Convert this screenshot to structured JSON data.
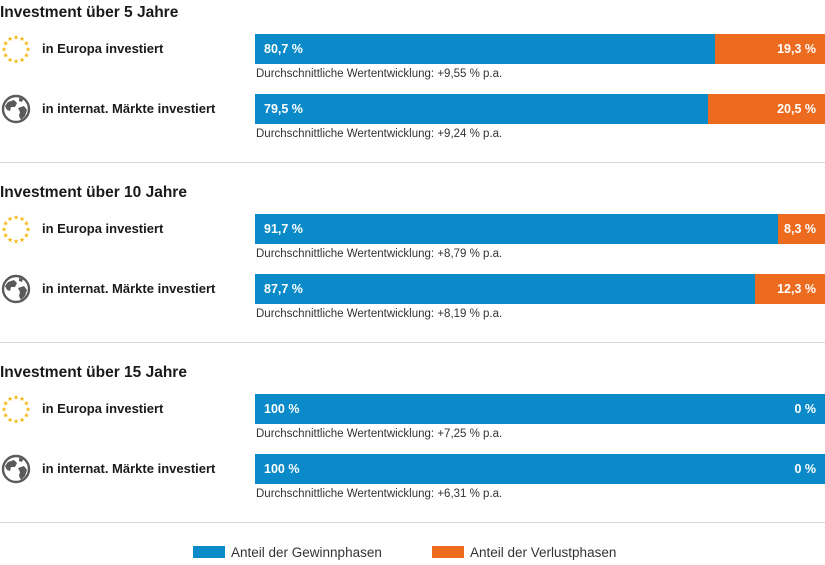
{
  "colors": {
    "gain": "#0a8ac8",
    "loss": "#ec6b1f",
    "europe_icon": "#f5b400",
    "globe_icon": "#5a5a5a"
  },
  "chart_data": {
    "type": "bar",
    "orientation": "horizontal",
    "stacked": true,
    "xlim": [
      0,
      100
    ],
    "avg_prefix": "Durchschnittliche Wertentwicklung:",
    "legend": [
      {
        "label": "Anteil der Gewinnphasen",
        "color": "#0a8ac8"
      },
      {
        "label": "Anteil der Verlustphasen",
        "color": "#ec6b1f"
      }
    ],
    "groups": [
      {
        "title": "Investment über 5 Jahre",
        "rows": [
          {
            "label": "in Europa investiert",
            "icon": "europe-stars-icon",
            "gain": 80.7,
            "loss": 19.3,
            "gain_text": "80,7 %",
            "loss_text": "19,3 %",
            "avg_text": "+9,55 % p.a."
          },
          {
            "label": "in internat. Märkte investiert",
            "icon": "globe-icon",
            "gain": 79.5,
            "loss": 20.5,
            "gain_text": "79,5 %",
            "loss_text": "20,5 %",
            "avg_text": "+9,24 % p.a."
          }
        ]
      },
      {
        "title": "Investment über 10 Jahre",
        "rows": [
          {
            "label": "in Europa investiert",
            "icon": "europe-stars-icon",
            "gain": 91.7,
            "loss": 8.3,
            "gain_text": "91,7 %",
            "loss_text": "8,3 %",
            "avg_text": "+8,79 % p.a."
          },
          {
            "label": "in internat. Märkte investiert",
            "icon": "globe-icon",
            "gain": 87.7,
            "loss": 12.3,
            "gain_text": "87,7 %",
            "loss_text": "12,3 %",
            "avg_text": "+8,19 % p.a."
          }
        ]
      },
      {
        "title": "Investment über 15 Jahre",
        "rows": [
          {
            "label": "in Europa investiert",
            "icon": "europe-stars-icon",
            "gain": 100,
            "loss": 0,
            "gain_text": "100 %",
            "loss_text": "0 %",
            "avg_text": "+7,25 % p.a."
          },
          {
            "label": "in internat. Märkte investiert",
            "icon": "globe-icon",
            "gain": 100,
            "loss": 0,
            "gain_text": "100 %",
            "loss_text": "0 %",
            "avg_text": "+6,31 % p.a."
          }
        ]
      }
    ]
  }
}
